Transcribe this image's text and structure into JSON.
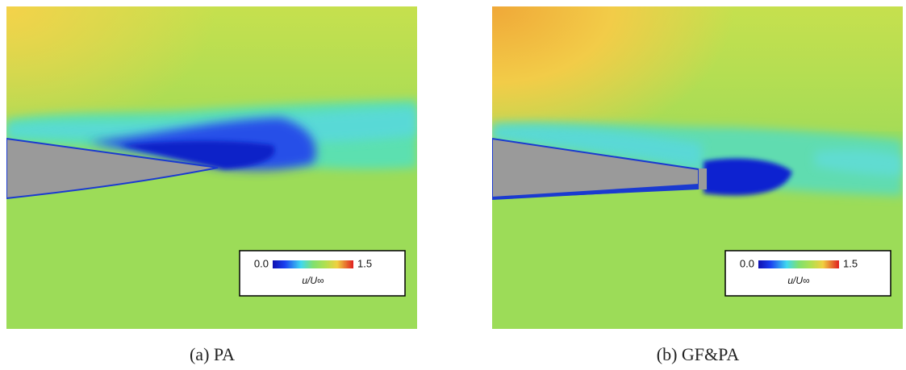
{
  "panels": [
    {
      "caption": "(a) PA",
      "colorbar": {
        "min": "0.0",
        "max": "1.5",
        "label": "u/U∞"
      }
    },
    {
      "caption": "(b) GF&PA",
      "colorbar": {
        "min": "0.0",
        "max": "1.5",
        "label": "u/U∞"
      }
    }
  ]
}
